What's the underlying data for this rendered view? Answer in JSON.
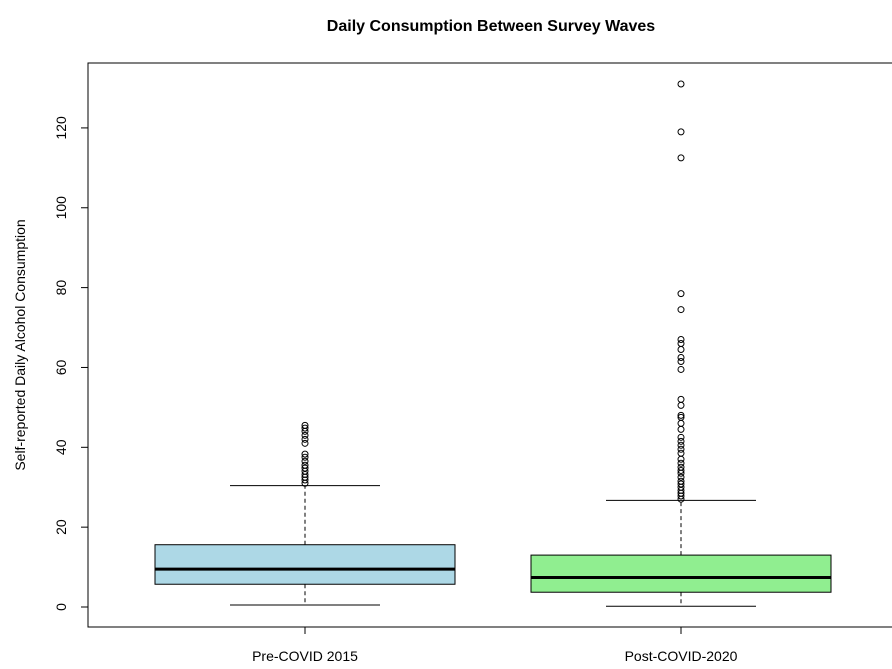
{
  "chart_data": {
    "type": "box",
    "title": "Daily Consumption Between Survey Waves",
    "xlabel": "",
    "ylabel": "Self-reported Daily Alcohol Consumption",
    "ylim": [
      -4,
      135
    ],
    "yticks": [
      "0",
      "20",
      "40",
      "60",
      "80",
      "100",
      "120"
    ],
    "categories": [
      "Pre-COVID 2015",
      "Post-COVID-2020"
    ],
    "boxes": [
      {
        "category": "Pre-COVID 2015",
        "fill": "#add8e6",
        "whisker_low": 0.5,
        "q1": 5.7,
        "median": 9.5,
        "q3": 15.6,
        "whisker_high": 30.4,
        "outliers": [
          31.0,
          31.8,
          32.5,
          33.2,
          34.0,
          34.8,
          35.5,
          36.5,
          37.5,
          38.3,
          41.0,
          42.0,
          43.0,
          44.0,
          44.8,
          45.5
        ]
      },
      {
        "category": "Post-COVID-2020",
        "fill": "#90ee90",
        "whisker_low": 0.2,
        "q1": 3.7,
        "median": 7.4,
        "q3": 13.0,
        "whisker_high": 26.7,
        "outliers": [
          27.0,
          27.8,
          28.5,
          29.2,
          30.0,
          30.8,
          31.5,
          32.5,
          33.5,
          34.2,
          35.0,
          36.0,
          37.0,
          38.5,
          39.5,
          40.5,
          41.5,
          42.5,
          44.5,
          46.0,
          47.5,
          48.0,
          50.5,
          52.0,
          59.5,
          61.5,
          62.5,
          64.5,
          66.0,
          67.0,
          74.5,
          78.5,
          112.5,
          119.0,
          131.0
        ]
      }
    ]
  }
}
